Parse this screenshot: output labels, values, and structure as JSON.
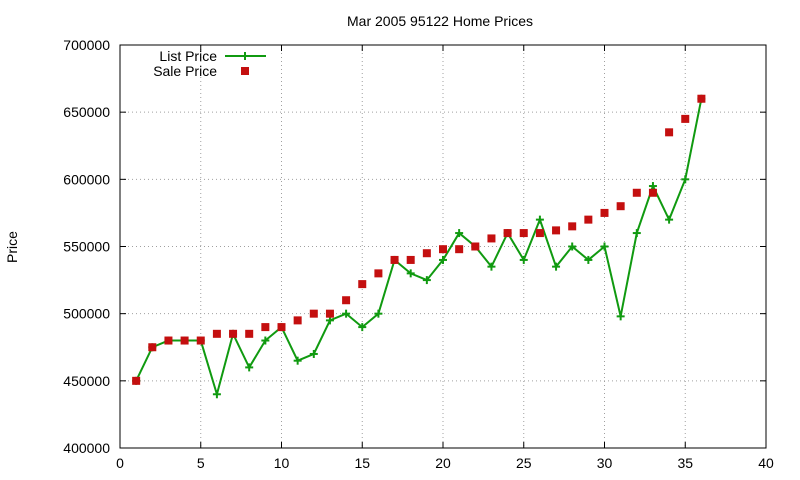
{
  "chart_data": {
    "type": "line",
    "title": "Mar 2005 95122 Home Prices",
    "xlabel": "",
    "ylabel": "Price",
    "xlim": [
      0,
      40
    ],
    "ylim": [
      400000,
      700000
    ],
    "xticks": [
      "0",
      "5",
      "10",
      "15",
      "20",
      "25",
      "30",
      "35",
      "40"
    ],
    "yticks": [
      "400000",
      "450000",
      "500000",
      "550000",
      "600000",
      "650000",
      "700000"
    ],
    "grid": true,
    "legend_position": "top-left",
    "series": [
      {
        "name": "List Price",
        "style": "line+cross",
        "color": "#109a10",
        "x": [
          1,
          2,
          3,
          4,
          5,
          6,
          7,
          8,
          9,
          10,
          11,
          12,
          13,
          14,
          15,
          16,
          17,
          18,
          19,
          20,
          21,
          22,
          23,
          24,
          25,
          26,
          27,
          28,
          29,
          30,
          31,
          32,
          33,
          34,
          35,
          36
        ],
        "values": [
          450000,
          475000,
          480000,
          480000,
          480000,
          440000,
          485000,
          460000,
          480000,
          490000,
          465000,
          470000,
          495000,
          500000,
          490000,
          500000,
          540000,
          530000,
          525000,
          540000,
          560000,
          550000,
          535000,
          560000,
          540000,
          570000,
          535000,
          550000,
          540000,
          550000,
          498000,
          560000,
          595000,
          570000,
          600000,
          660000
        ]
      },
      {
        "name": "Sale Price",
        "style": "square",
        "color": "#c40f0f",
        "x": [
          1,
          2,
          3,
          4,
          5,
          6,
          7,
          8,
          9,
          10,
          11,
          12,
          13,
          14,
          15,
          16,
          17,
          18,
          19,
          20,
          21,
          22,
          23,
          24,
          25,
          26,
          27,
          28,
          29,
          30,
          31,
          32,
          33,
          34,
          35,
          36
        ],
        "values": [
          450000,
          475000,
          480000,
          480000,
          480000,
          485000,
          485000,
          485000,
          490000,
          490000,
          495000,
          500000,
          500000,
          510000,
          522000,
          530000,
          540000,
          540000,
          545000,
          548000,
          548000,
          550000,
          556000,
          560000,
          560000,
          560000,
          562000,
          565000,
          570000,
          575000,
          580000,
          590000,
          590000,
          635000,
          645000,
          660000
        ]
      }
    ]
  }
}
